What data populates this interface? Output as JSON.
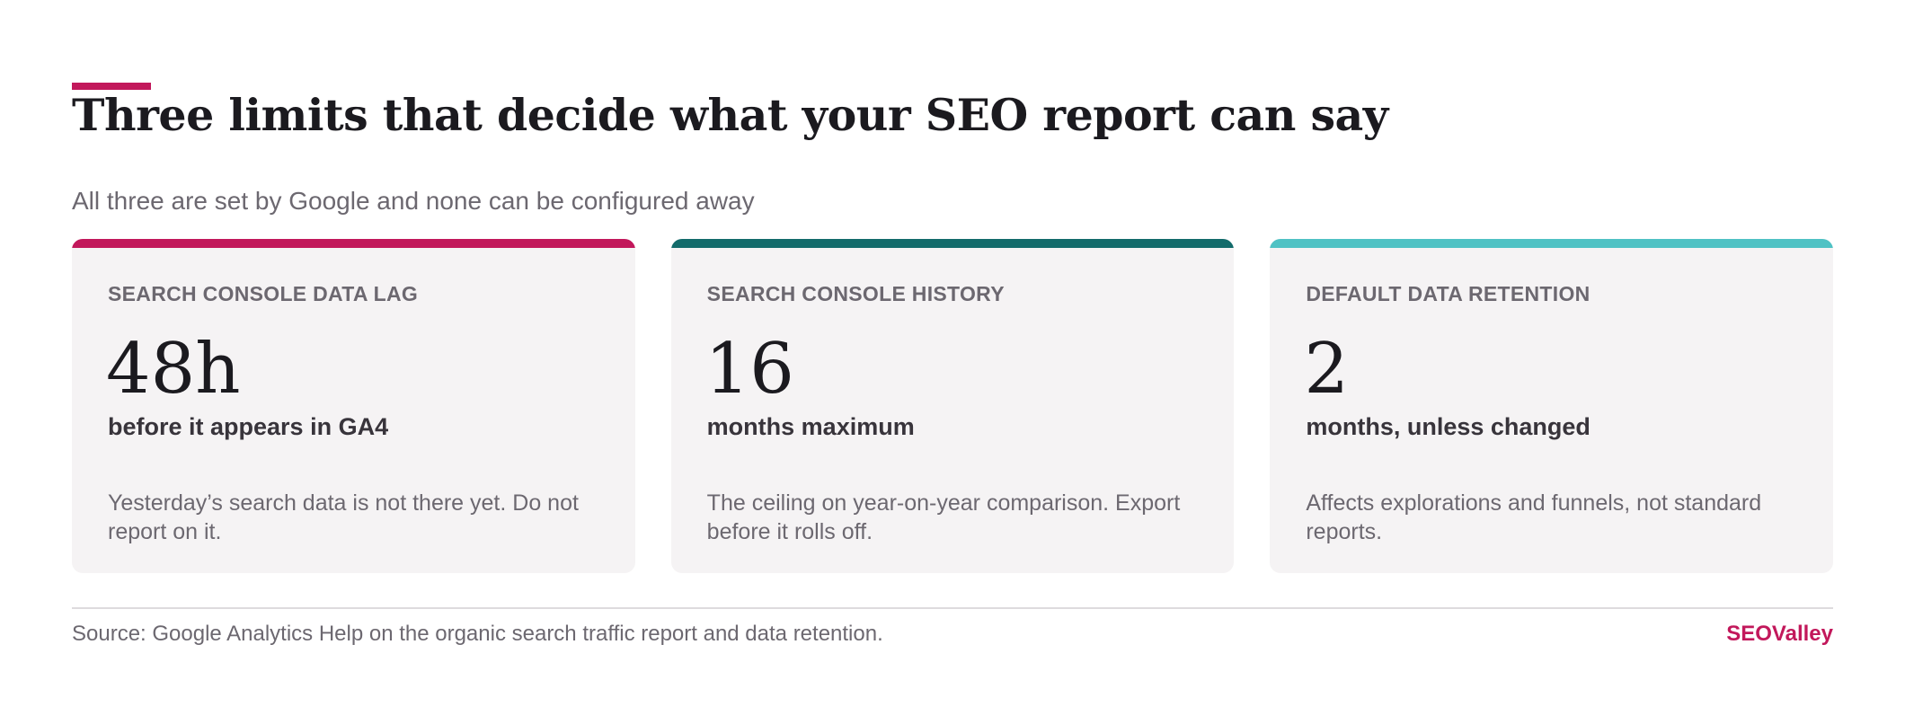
{
  "header": {
    "title": "Three limits that decide what your SEO report can say",
    "subtitle": "All three are set by Google and none can be configured away"
  },
  "cards": [
    {
      "label": "SEARCH CONSOLE DATA LAG",
      "value": "48h",
      "unit": "before it appears in GA4",
      "description": "Yesterday’s search data is not there yet. Do not report on it.",
      "accent_color": "#c2185b"
    },
    {
      "label": "SEARCH CONSOLE HISTORY",
      "value": "16",
      "unit": "months maximum",
      "description": "The ceiling on year-on-year comparison. Export before it rolls off.",
      "accent_color": "#136b6b"
    },
    {
      "label": "DEFAULT DATA RETENTION",
      "value": "2",
      "unit": "months, unless changed",
      "description": "Affects explorations and funnels, not standard reports.",
      "accent_color": "#4fc2c4"
    }
  ],
  "footer": {
    "source": "Source: Google Analytics Help on the organic search traffic report and data retention.",
    "brand": "SEOValley"
  },
  "colors": {
    "brand_accent": "#c2185b"
  }
}
